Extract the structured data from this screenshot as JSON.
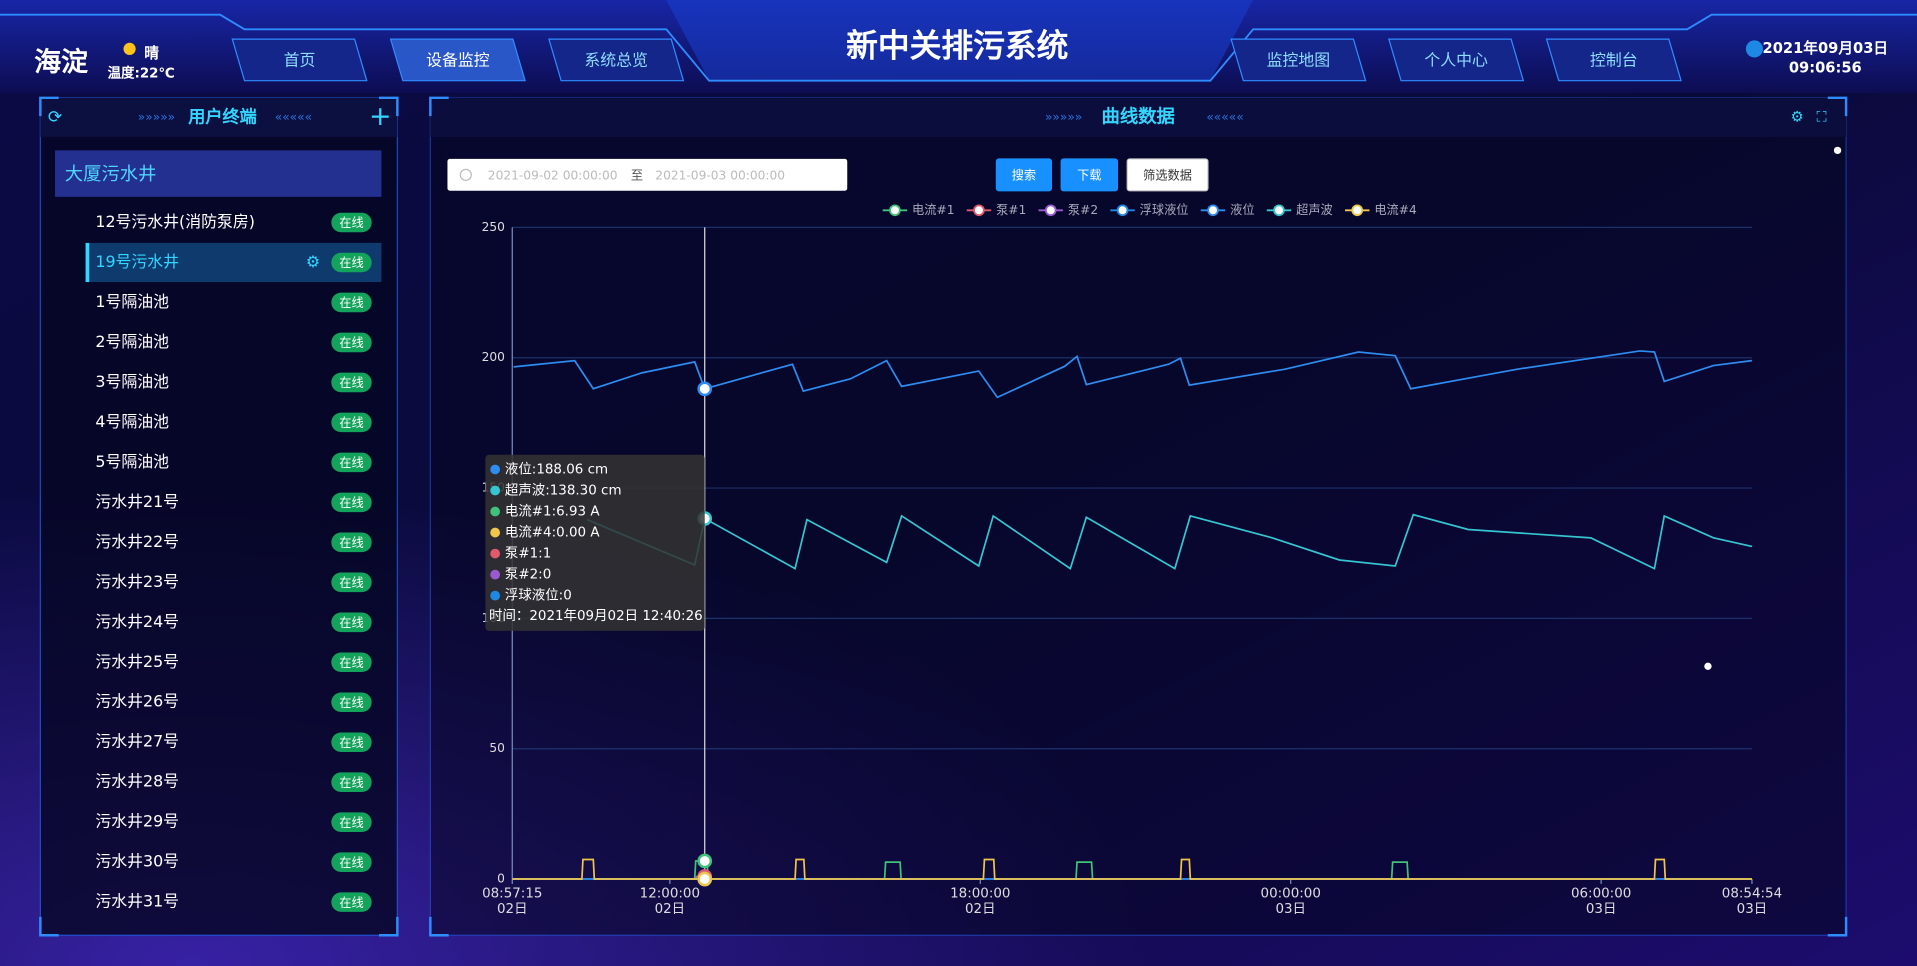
{
  "header": {
    "district": "海淀",
    "weather": "晴",
    "temperature": "温度:22℃",
    "nav_left": [
      {
        "label": "首页",
        "active": false
      },
      {
        "label": "设备监控",
        "active": true
      },
      {
        "label": "系统总览",
        "active": false
      }
    ],
    "title": "新中关排污系统",
    "nav_right": [
      {
        "label": "监控地图",
        "active": false
      },
      {
        "label": "个人中心",
        "active": false
      },
      {
        "label": "控制台",
        "active": false
      }
    ],
    "date": "2021年09月03日",
    "time": "09:06:56"
  },
  "sidebar": {
    "title": "用户终端",
    "group": "大厦污水井",
    "items": [
      {
        "name": "12号污水井(消防泵房)",
        "status": "在线",
        "selected": false
      },
      {
        "name": "19号污水井",
        "status": "在线",
        "selected": true
      },
      {
        "name": "1号隔油池",
        "status": "在线",
        "selected": false
      },
      {
        "name": "2号隔油池",
        "status": "在线",
        "selected": false
      },
      {
        "name": "3号隔油池",
        "status": "在线",
        "selected": false
      },
      {
        "name": "4号隔油池",
        "status": "在线",
        "selected": false
      },
      {
        "name": "5号隔油池",
        "status": "在线",
        "selected": false
      },
      {
        "name": "污水井21号",
        "status": "在线",
        "selected": false
      },
      {
        "name": "污水井22号",
        "status": "在线",
        "selected": false
      },
      {
        "name": "污水井23号",
        "status": "在线",
        "selected": false
      },
      {
        "name": "污水井24号",
        "status": "在线",
        "selected": false
      },
      {
        "name": "污水井25号",
        "status": "在线",
        "selected": false
      },
      {
        "name": "污水井26号",
        "status": "在线",
        "selected": false
      },
      {
        "name": "污水井27号",
        "status": "在线",
        "selected": false
      },
      {
        "name": "污水井28号",
        "status": "在线",
        "selected": false
      },
      {
        "name": "污水井29号",
        "status": "在线",
        "selected": false
      },
      {
        "name": "污水井30号",
        "status": "在线",
        "selected": false
      },
      {
        "name": "污水井31号",
        "status": "在线",
        "selected": false
      }
    ]
  },
  "panel": {
    "title": "曲线数据",
    "start": "2021-09-02 00:00:00",
    "separator": "至",
    "end": "2021-09-03 00:00:00",
    "buttons": [
      "搜索",
      "下载",
      "筛选数据"
    ]
  },
  "chart_data": {
    "type": "line",
    "legend": "top",
    "grid": true,
    "xlim": [
      8.954,
      32.915
    ],
    "xticks": [
      {
        "value": 8.954,
        "label": "08:57:15\n02日"
      },
      {
        "value": 12,
        "label": "12:00:00\n02日"
      },
      {
        "value": 18,
        "label": "18:00:00\n02日"
      },
      {
        "value": 24,
        "label": "00:00:00\n03日"
      },
      {
        "value": 30,
        "label": "06:00:00\n03日"
      },
      {
        "value": 32.915,
        "label": "08:54:54\n03日"
      }
    ],
    "ylim": [
      0,
      250
    ],
    "yticks": [
      0,
      50,
      100,
      150,
      200,
      250
    ],
    "series": [
      {
        "name": "电流#1",
        "color": "#3fc27a",
        "x": [
          8.954,
          12.48,
          12.5,
          12.674,
          12.72,
          12.74,
          16.15,
          16.17,
          16.45,
          16.47,
          19.85,
          19.87,
          20.15,
          20.17,
          25.95,
          25.97,
          26.25,
          26.27,
          32.915
        ],
        "values": [
          0,
          0,
          6.93,
          6.93,
          6.93,
          0,
          0,
          6.5,
          6.5,
          0,
          0,
          6.5,
          6.5,
          0,
          0,
          6.5,
          6.5,
          0,
          0
        ]
      },
      {
        "name": "泵#1",
        "color": "#e05a6a",
        "x": [
          8.954,
          12.5,
          12.52,
          12.674,
          12.72,
          12.74,
          32.915
        ],
        "values": [
          0,
          0,
          1,
          1,
          1,
          0,
          0
        ]
      },
      {
        "name": "泵#2",
        "color": "#9b59d0",
        "x": [
          8.954,
          12.674,
          32.915
        ],
        "values": [
          0,
          0,
          0
        ]
      },
      {
        "name": "浮球液位",
        "color": "#1e88e5",
        "x": [
          8.954,
          12.674,
          32.915
        ],
        "values": [
          0,
          0,
          0
        ]
      },
      {
        "name": "液位",
        "color": "#2e8cf0",
        "x": [
          8.98,
          10.16,
          10.52,
          11.46,
          12.48,
          12.674,
          14.37,
          14.58,
          15.49,
          16.19,
          16.48,
          17.97,
          18.33,
          19.63,
          19.87,
          20.05,
          21.64,
          21.87,
          22.04,
          23.89,
          25.31,
          26.02,
          26.32,
          28.38,
          30.75,
          31.03,
          31.22,
          32.17,
          32.915
        ],
        "values": [
          196.5,
          198.9,
          188.1,
          194.2,
          198.4,
          188.06,
          197.5,
          187.2,
          191.9,
          198.9,
          189.0,
          194.9,
          184.8,
          196.7,
          200.5,
          189.7,
          197.5,
          199.8,
          189.5,
          195.6,
          202.2,
          200.8,
          188.1,
          195.6,
          202.6,
          202.2,
          190.9,
          197.0,
          198.9
        ]
      },
      {
        "name": "超声波",
        "color": "#36c5d0",
        "x": [
          10.4,
          12.48,
          12.674,
          14.42,
          14.65,
          16.19,
          16.48,
          17.97,
          18.25,
          19.74,
          20.05,
          21.76,
          22.06,
          23.64,
          24.94,
          26.02,
          26.37,
          27.43,
          29.8,
          31.03,
          31.22,
          32.17,
          32.915
        ],
        "values": [
          137.9,
          120.5,
          138.3,
          119.1,
          137.9,
          121.5,
          139.3,
          120.1,
          139.3,
          119.1,
          138.8,
          119.1,
          139.3,
          130.9,
          122.4,
          120.1,
          139.8,
          134.1,
          130.9,
          119.1,
          139.3,
          130.9,
          127.6
        ]
      },
      {
        "name": "电流#4",
        "color": "#f0c64a",
        "x": [
          8.954,
          10.3,
          10.32,
          10.52,
          10.54,
          12.674,
          14.42,
          14.44,
          14.59,
          14.61,
          18.06,
          18.08,
          18.26,
          18.28,
          21.87,
          21.89,
          22.04,
          22.06,
          31.03,
          31.05,
          31.22,
          31.24,
          32.915
        ],
        "values": [
          0,
          0,
          7.5,
          7.5,
          0,
          0,
          0,
          7.5,
          7.5,
          0,
          0,
          7.5,
          7.5,
          0,
          0,
          7.5,
          7.5,
          0,
          0,
          7.5,
          7.5,
          0,
          0
        ]
      }
    ]
  },
  "tooltip": {
    "x": 12.674,
    "items": [
      "液位:188.06 cm",
      "超声波:138.30 cm",
      "电流#1:6.93 A",
      "电流#4:0.00 A",
      "泵#1:1",
      "泵#2:0",
      "浮球液位:0"
    ],
    "time": "时间：2021年09月02日 12:40:26"
  }
}
